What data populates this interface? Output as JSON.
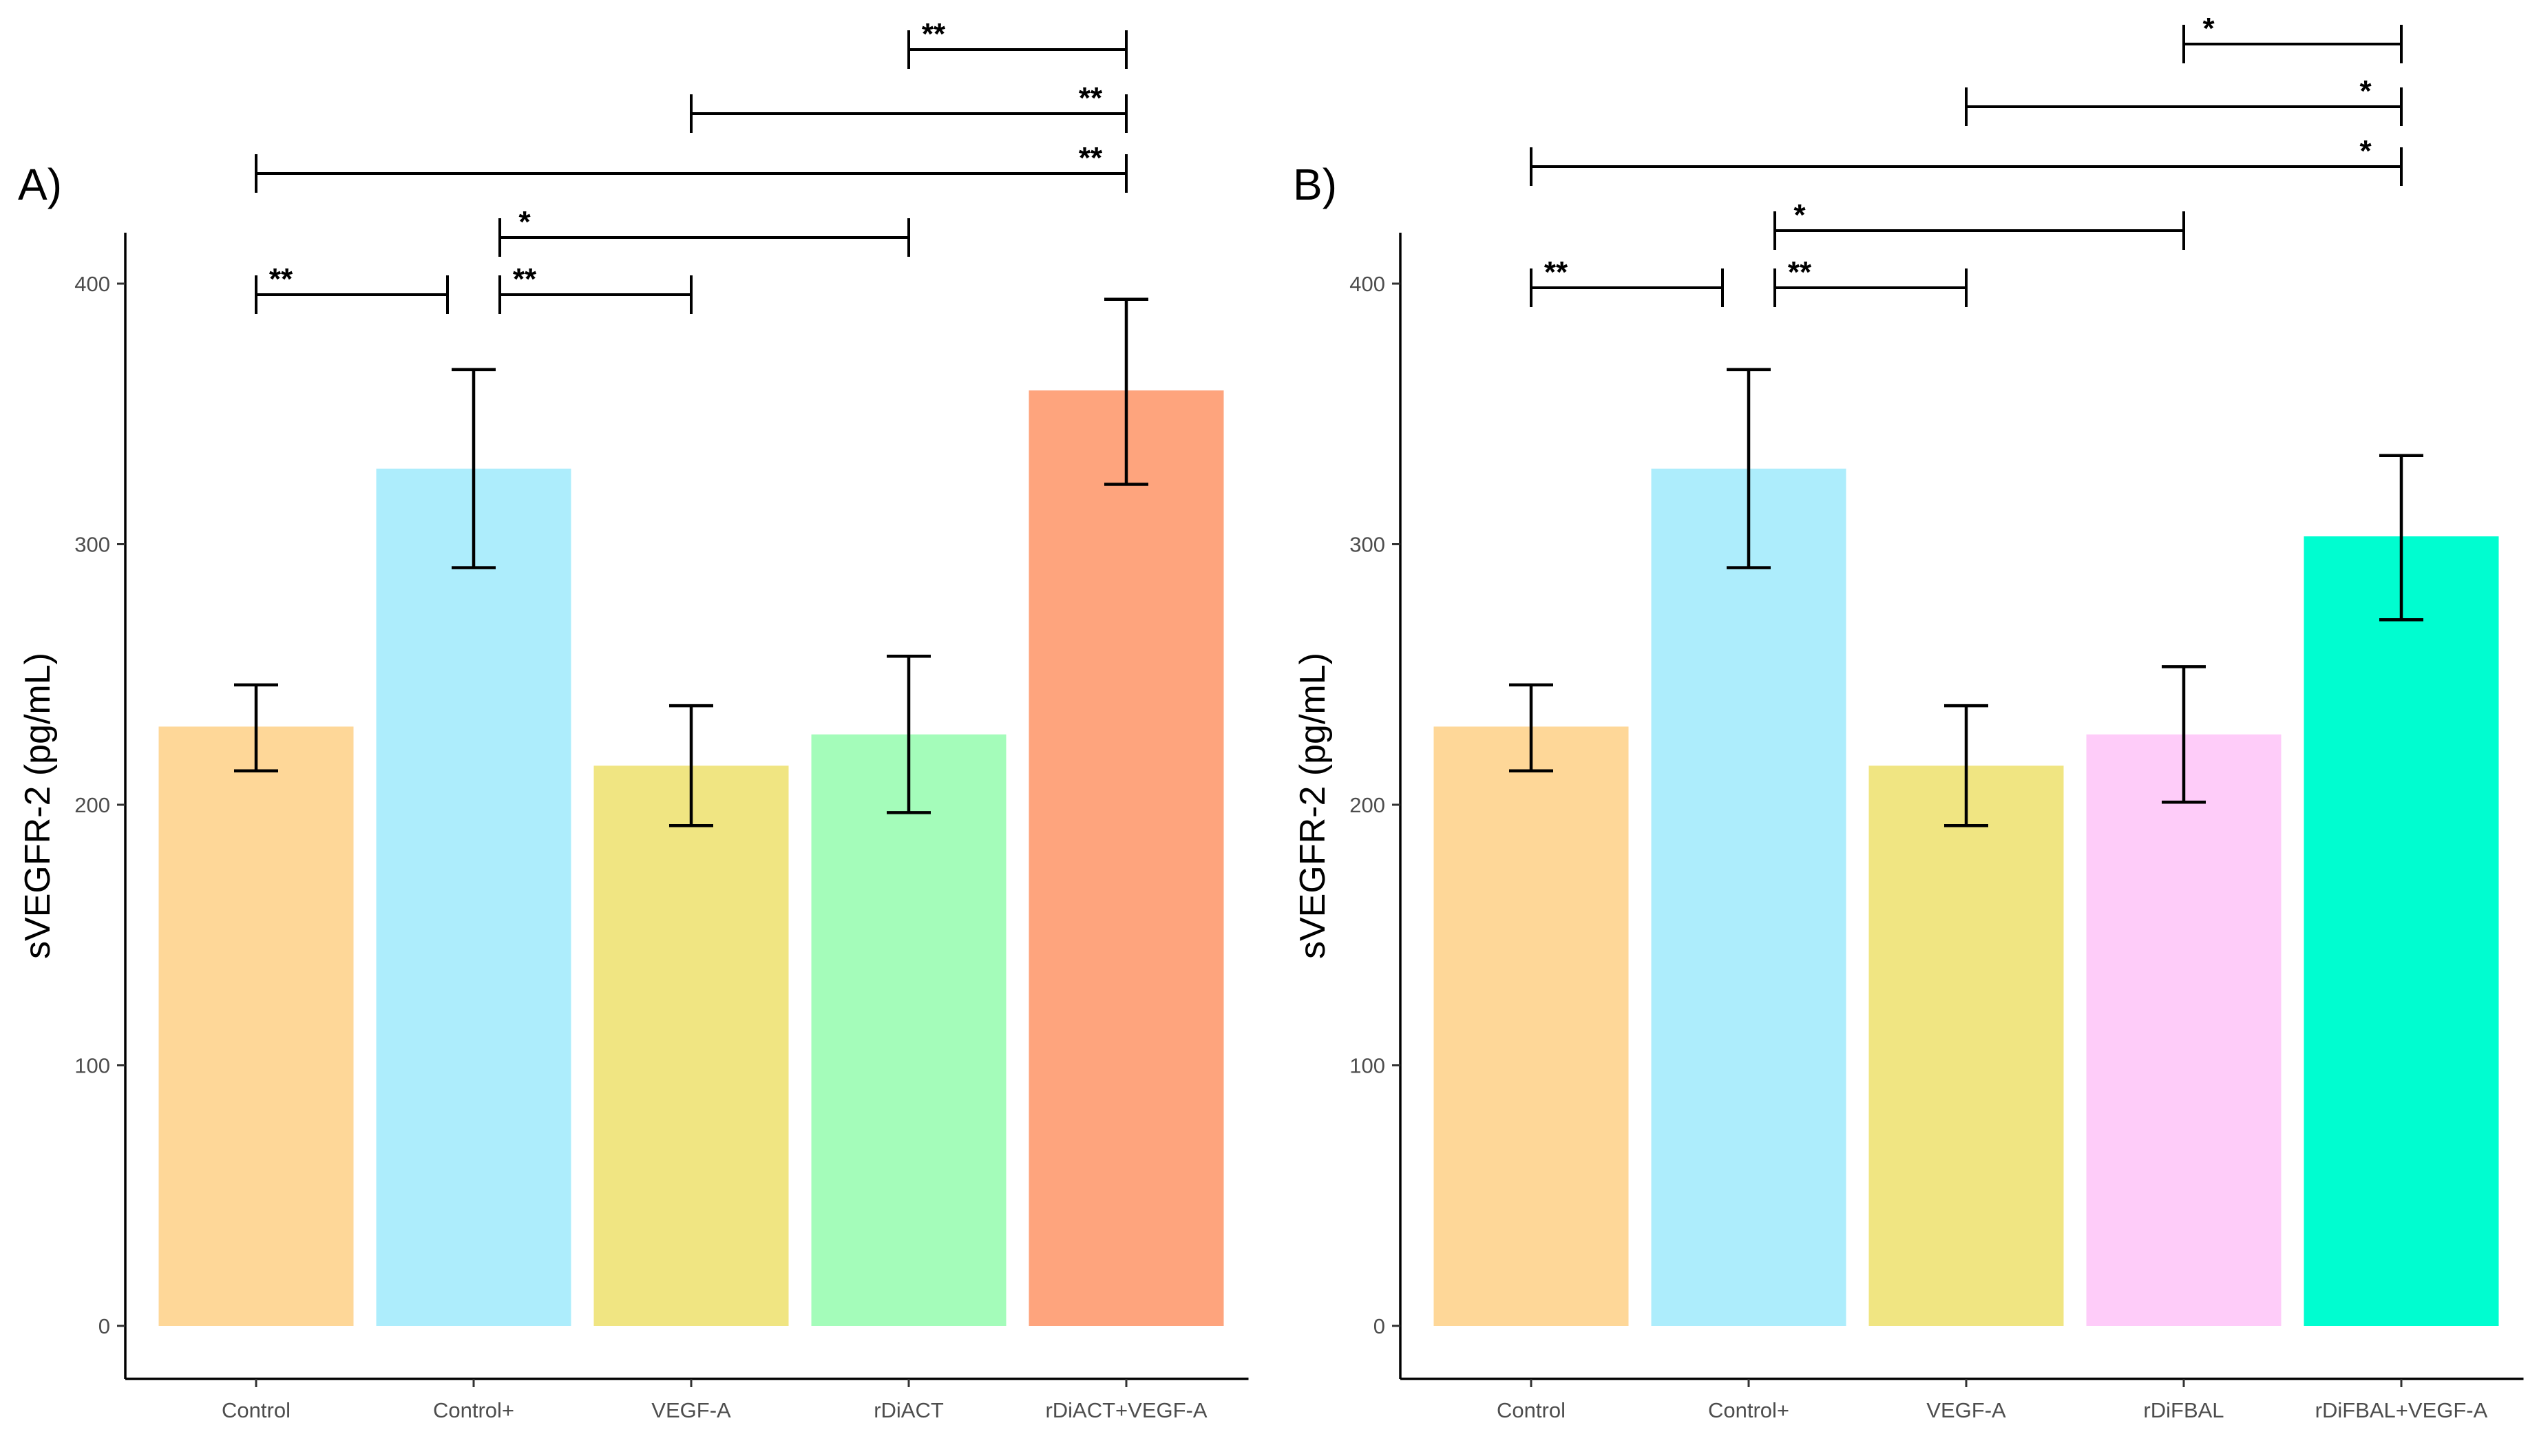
{
  "chart_data": [
    {
      "type": "bar",
      "panel_label": "A)",
      "title": "",
      "xlabel": "",
      "ylabel": "sVEGFR-2 (pg/mL)",
      "ylim": [
        0,
        420
      ],
      "yticks": [
        0,
        100,
        200,
        300,
        400
      ],
      "grid": false,
      "categories": [
        "Control",
        "Control+",
        "VEGF-A",
        "rDiACT",
        "rDiACT+VEGF-A"
      ],
      "values": [
        230,
        329,
        215,
        227,
        359
      ],
      "error_low": [
        213,
        291,
        192,
        197,
        323
      ],
      "error_high": [
        246,
        367,
        238,
        257,
        394
      ],
      "colors": [
        "#FED798",
        "#ADEDFC",
        "#F0E582",
        "#A4FCBA",
        "#FEA47D"
      ],
      "significance": [
        {
          "from": "Control",
          "to": "Control+",
          "label": "**"
        },
        {
          "from": "Control+",
          "to": "VEGF-A",
          "label": "**"
        },
        {
          "from": "Control+",
          "to": "rDiACT",
          "label": "*"
        },
        {
          "from": "Control",
          "to": "rDiACT+VEGF-A",
          "label": "**"
        },
        {
          "from": "VEGF-A",
          "to": "rDiACT+VEGF-A",
          "label": "**"
        },
        {
          "from": "rDiACT",
          "to": "rDiACT+VEGF-A",
          "label": "**"
        }
      ]
    },
    {
      "type": "bar",
      "panel_label": "B)",
      "title": "",
      "xlabel": "",
      "ylabel": "sVEGFR-2 (pg/mL)",
      "ylim": [
        0,
        420
      ],
      "yticks": [
        0,
        100,
        200,
        300,
        400
      ],
      "grid": false,
      "categories": [
        "Control",
        "Control+",
        "VEGF-A",
        "rDiFBAL",
        "rDiFBAL+VEGF-A"
      ],
      "values": [
        230,
        329,
        215,
        227,
        303
      ],
      "error_low": [
        213,
        291,
        192,
        201,
        271
      ],
      "error_high": [
        246,
        367,
        238,
        253,
        334
      ],
      "colors": [
        "#FED798",
        "#ADEDFC",
        "#F0E582",
        "#FECCF9",
        "#00FDD0"
      ],
      "significance": [
        {
          "from": "Control",
          "to": "Control+",
          "label": "**"
        },
        {
          "from": "Control+",
          "to": "VEGF-A",
          "label": "**"
        },
        {
          "from": "Control+",
          "to": "rDiFBAL",
          "label": "*"
        },
        {
          "from": "Control",
          "to": "rDiFBAL+VEGF-A",
          "label": "*"
        },
        {
          "from": "VEGF-A",
          "to": "rDiFBAL+VEGF-A",
          "label": "*"
        },
        {
          "from": "rDiFBAL",
          "to": "rDiFBAL+VEGF-A",
          "label": "*"
        }
      ]
    }
  ]
}
